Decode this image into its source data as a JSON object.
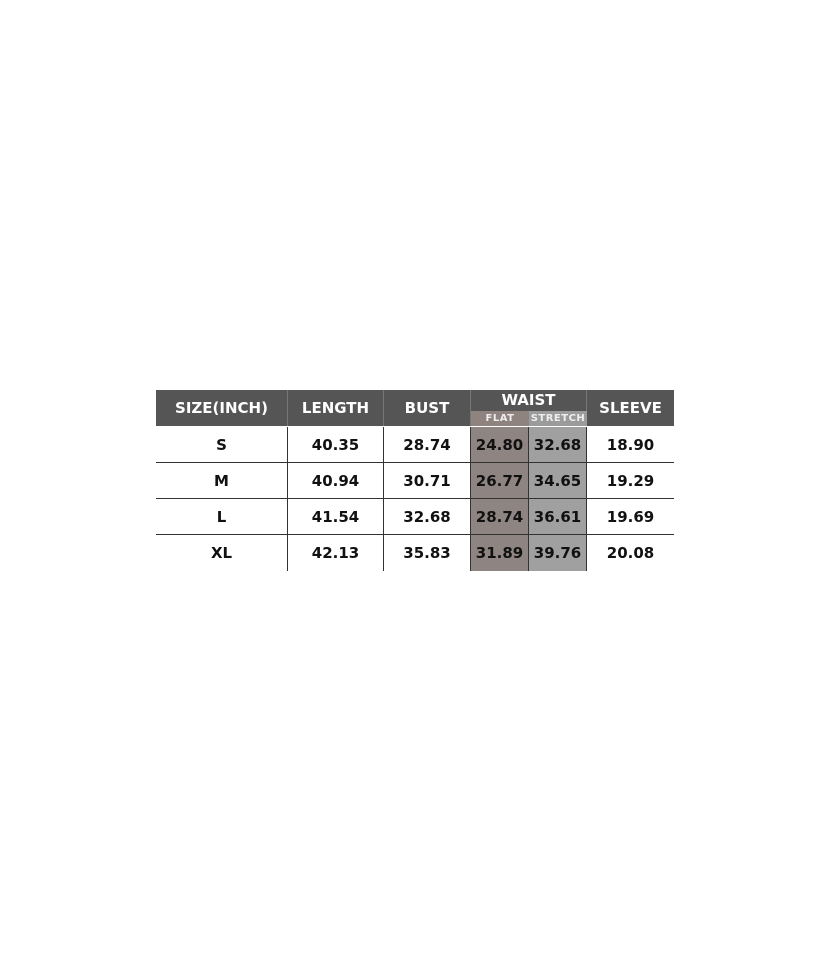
{
  "headers": {
    "size": "SIZE(INCH)",
    "length": "LENGTH",
    "bust": "BUST",
    "waist": "WAIST",
    "flat": "FLAT",
    "stretch": "STRETCH",
    "sleeve": "SLEEVE"
  },
  "colors": {
    "header": "#555555",
    "flat": "#8e8481",
    "stretch": "#a0a0a0"
  },
  "rows": [
    [
      "S",
      "40.35",
      "28.74",
      "24.80",
      "32.68",
      "18.90"
    ],
    [
      "M",
      "40.94",
      "30.71",
      "26.77",
      "34.65",
      "19.29"
    ],
    [
      "L",
      "41.54",
      "32.68",
      "28.74",
      "36.61",
      "19.69"
    ],
    [
      "XL",
      "42.13",
      "35.83",
      "31.89",
      "39.76",
      "20.08"
    ]
  ]
}
